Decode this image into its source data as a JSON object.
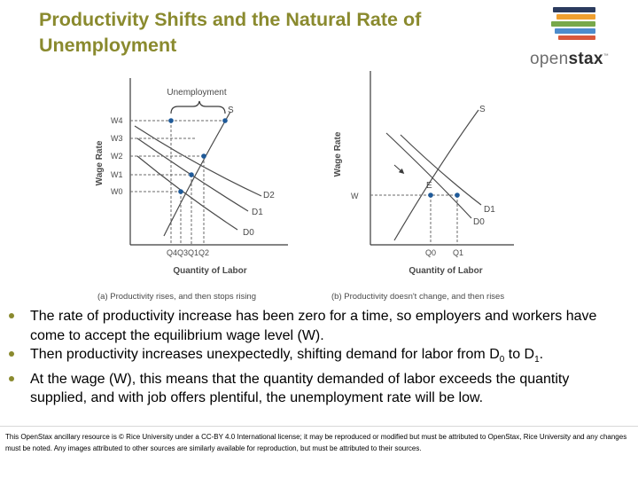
{
  "slide": {
    "title_line1": "Productivity Shifts and the Natural Rate of",
    "title_line2": "Unemployment"
  },
  "logo": {
    "text_open": "open",
    "text_stax": "stax",
    "trademark": "™",
    "bar_colors": [
      "#2b3b5e",
      "#f0a030",
      "#78a84a",
      "#4d8ccc",
      "#d9583b"
    ]
  },
  "figure": {
    "panel_a": {
      "caption": "(a) Productivity rises, and then stops rising",
      "ylabel": "Wage Rate",
      "xlabel": "Quantity of Labor",
      "brace_label": "Unemployment",
      "y_ticks": [
        "W4",
        "W3",
        "W2",
        "W1",
        "W0"
      ],
      "x_ticks": [
        "Q4",
        "Q3",
        "Q1",
        "Q2"
      ],
      "supply_label": "S",
      "demand_labels": [
        "D2",
        "D1",
        "D0"
      ]
    },
    "panel_b": {
      "caption": "(b) Productivity doesn't change, and then rises",
      "ylabel": "Wage Rate",
      "xlabel": "Quantity of Labor",
      "y_tick": "W",
      "x_ticks": [
        "Q0",
        "Q1"
      ],
      "supply_label": "S",
      "equilibrium_label": "E",
      "demand_labels": [
        "D1",
        "D0"
      ]
    },
    "colors": {
      "curve": "#4a4a4a",
      "dashed": "#6a6a6a",
      "point": "#1f5a99",
      "axis": "#3a3a3a",
      "text": "#4a4a4a"
    }
  },
  "bullets": [
    {
      "text": "The rate of productivity increase has been zero for a time, so employers and workers have come to accept the equilibrium wage level (W)."
    },
    {
      "pre": "Then productivity increases unexpectedly, shifting demand for labor from D",
      "sub1": "0",
      "mid": " to D",
      "sub2": "1",
      "post": "."
    },
    {
      "text": "At the wage (W), this means that the quantity demanded of labor exceeds the quantity supplied, and with job offers plentiful, the unemployment rate will be low."
    }
  ],
  "footer": {
    "text": "This OpenStax ancillary resource is © Rice University under a CC-BY 4.0 International license; it may be reproduced or modified but must be attributed to OpenStax, Rice University and any changes must be noted.  Any images attributed to other sources are similarly available for reproduction, but must be attributed to their sources."
  }
}
